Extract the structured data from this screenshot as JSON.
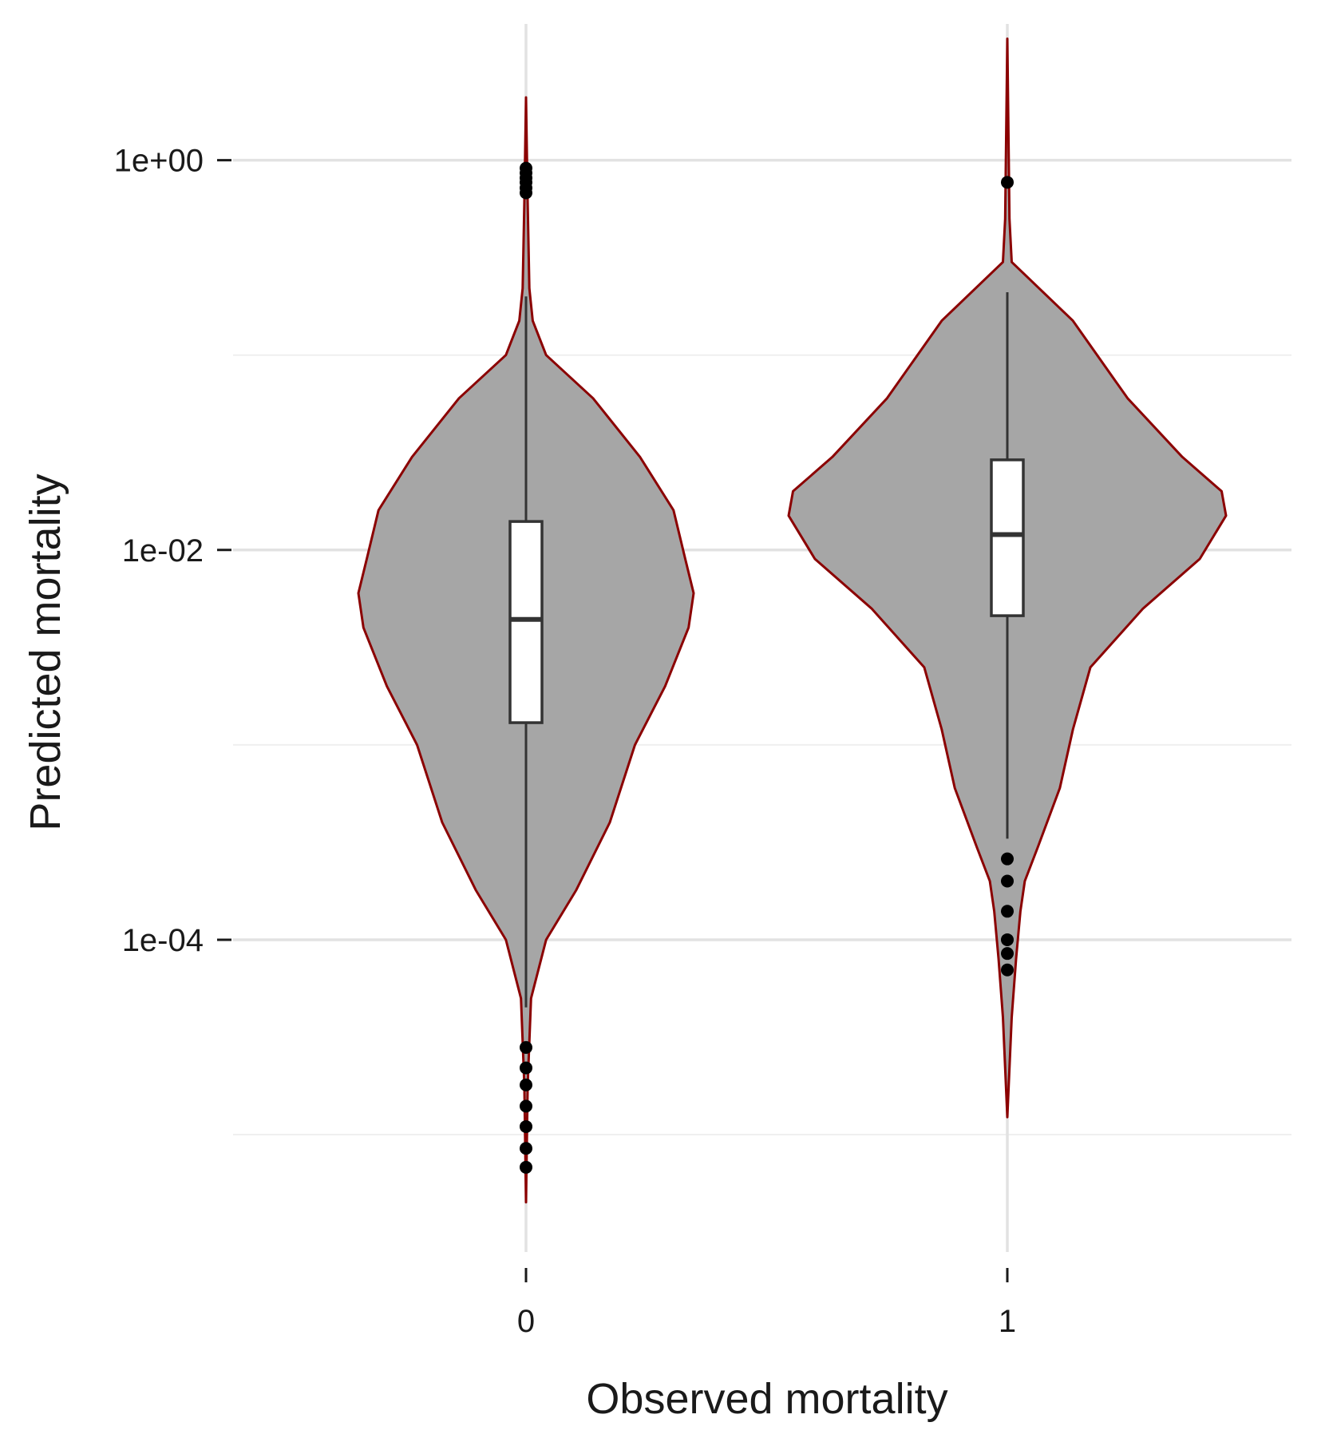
{
  "chart_data": {
    "type": "violin",
    "xlabel": "Observed mortality",
    "ylabel": "Predicted mortality",
    "y_scale": "log10",
    "ylim": [
      2.5e-06,
      5
    ],
    "y_ticks": [
      {
        "value": 1,
        "label": "1e+00"
      },
      {
        "value": 0.01,
        "label": "1e-02"
      },
      {
        "value": 0.0001,
        "label": "1e-04"
      }
    ],
    "y_minor_gridlines": [
      0.1,
      0.001,
      1e-05
    ],
    "grid": true,
    "categories": [
      "0",
      "1"
    ],
    "groups": [
      {
        "category": "0",
        "violin_range": [
          4.5e-06,
          2.1
        ],
        "density_profile": [
          {
            "y": 4.5e-06,
            "w": 0.0
          },
          {
            "y": 1.8e-05,
            "w": 0.01
          },
          {
            "y": 5e-05,
            "w": 0.03
          },
          {
            "y": 0.0001,
            "w": 0.12
          },
          {
            "y": 0.00018,
            "w": 0.3
          },
          {
            "y": 0.0004,
            "w": 0.5
          },
          {
            "y": 0.001,
            "w": 0.65
          },
          {
            "y": 0.002,
            "w": 0.83
          },
          {
            "y": 0.004,
            "w": 0.97
          },
          {
            "y": 0.006,
            "w": 1.0
          },
          {
            "y": 0.009,
            "w": 0.95
          },
          {
            "y": 0.016,
            "w": 0.88
          },
          {
            "y": 0.03,
            "w": 0.68
          },
          {
            "y": 0.06,
            "w": 0.4
          },
          {
            "y": 0.1,
            "w": 0.12
          },
          {
            "y": 0.15,
            "w": 0.04
          },
          {
            "y": 0.22,
            "w": 0.02
          },
          {
            "y": 0.6,
            "w": 0.01
          },
          {
            "y": 2.1,
            "w": 0.0
          }
        ],
        "box": {
          "lower_whisker": 4.5e-05,
          "q1": 0.0013,
          "median": 0.0044,
          "q3": 0.014,
          "upper_whisker": 0.2
        },
        "outliers": [
          0.91,
          0.86,
          0.81,
          0.77,
          0.72,
          0.68,
          2.8e-05,
          2.2e-05,
          1.8e-05,
          1.4e-05,
          1.1e-05,
          8.5e-06,
          6.8e-06
        ]
      },
      {
        "category": "1",
        "violin_range": [
          1.23e-05,
          4.2
        ],
        "density_profile": [
          {
            "y": 1.23e-05,
            "w": 0.0
          },
          {
            "y": 4e-05,
            "w": 0.02
          },
          {
            "y": 8e-05,
            "w": 0.04
          },
          {
            "y": 0.00014,
            "w": 0.06
          },
          {
            "y": 0.0002,
            "w": 0.08
          },
          {
            "y": 0.0003,
            "w": 0.14
          },
          {
            "y": 0.0006,
            "w": 0.24
          },
          {
            "y": 0.0012,
            "w": 0.3
          },
          {
            "y": 0.0025,
            "w": 0.38
          },
          {
            "y": 0.005,
            "w": 0.62
          },
          {
            "y": 0.009,
            "w": 0.88
          },
          {
            "y": 0.015,
            "w": 1.0
          },
          {
            "y": 0.02,
            "w": 0.98
          },
          {
            "y": 0.03,
            "w": 0.8
          },
          {
            "y": 0.06,
            "w": 0.55
          },
          {
            "y": 0.15,
            "w": 0.3
          },
          {
            "y": 0.3,
            "w": 0.02
          },
          {
            "y": 0.5,
            "w": 0.01
          },
          {
            "y": 4.2,
            "w": 0.0
          }
        ],
        "box": {
          "lower_whisker": 0.00033,
          "q1": 0.0046,
          "median": 0.012,
          "q3": 0.029,
          "upper_whisker": 0.21
        },
        "outliers": [
          0.77,
          0.00026,
          0.0002,
          0.00014,
          0.0001,
          8.5e-05,
          7e-05
        ]
      }
    ],
    "colors": {
      "violin_fill": "#a6a6a6",
      "violin_outline": "#8b0000",
      "box_fill": "#ffffff",
      "box_line": "#333333",
      "outlier": "#000000",
      "gridline": "#e2e2e2",
      "gridline_minor": "#efefef",
      "axis_text": "#1a1a1a"
    }
  }
}
